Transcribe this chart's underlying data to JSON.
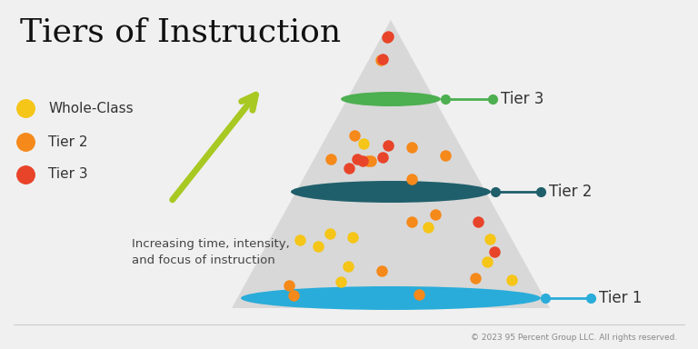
{
  "title": "Tiers of Instruction",
  "background_color": "#f0f0f0",
  "triangle_color": "#d8d8d8",
  "tier1_ellipse_color": "#29acd9",
  "tier2_ellipse_color": "#1f5f6b",
  "tier3_ellipse_color": "#4caf50",
  "arrow_color": "#a8c822",
  "tier_labels": [
    "Tier 1",
    "Tier 2",
    "Tier 3"
  ],
  "tier1_line_color": "#29acd9",
  "tier2_line_color": "#1f5f6b",
  "tier3_line_color": "#4caf50",
  "legend_items": [
    {
      "label": "Whole-Class",
      "color": "#f5c518"
    },
    {
      "label": "Tier 2",
      "color": "#f5891a"
    },
    {
      "label": "Tier 3",
      "color": "#e8442a"
    }
  ],
  "intensity_text": "Increasing time, intensity,\nand focus of instruction",
  "copyright_text": "© 2023 95 Percent Group LLC. All rights reserved.",
  "title_fontsize": 26,
  "label_fontsize": 12
}
